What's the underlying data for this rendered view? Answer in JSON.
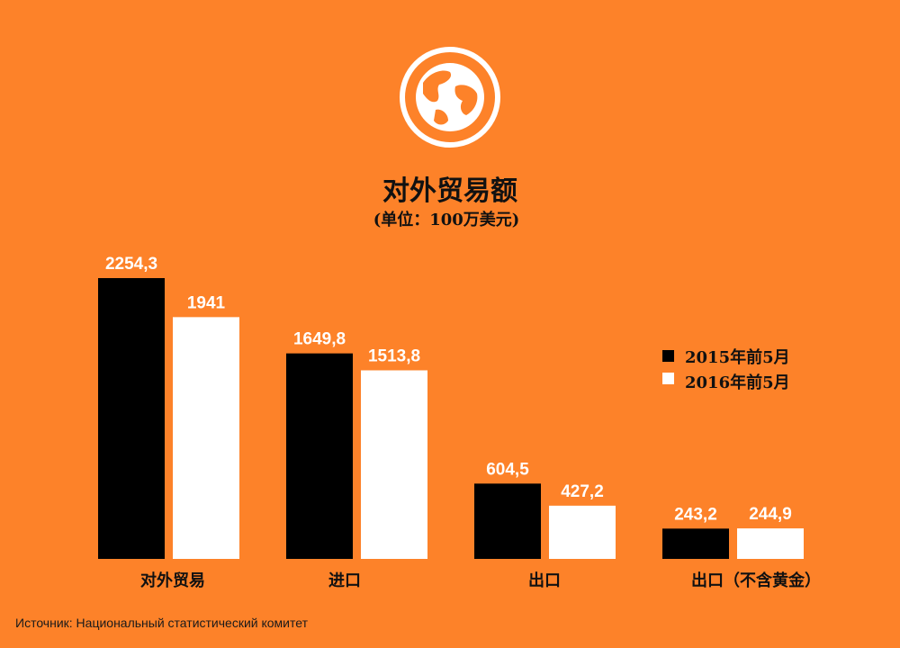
{
  "colors": {
    "background": "#fd8229",
    "series_2015": "#000000",
    "series_2016": "#ffffff",
    "icon_ring": "#ffffff",
    "icon_fill": "#fd8229"
  },
  "icon": "globe-icon",
  "chart_data": {
    "type": "bar",
    "title": "对外贸易额",
    "subtitle": "(单位：100万美元)",
    "categories": [
      "对外贸易",
      "进口",
      "出口",
      "出口（不含黄金）"
    ],
    "series": [
      {
        "name": "2015年前5月",
        "values": [
          2254.3,
          1649.8,
          604.5,
          243.2
        ],
        "labels": [
          "2254,3",
          "1649,8",
          "604,5",
          "243,2"
        ]
      },
      {
        "name": "2016年前5月",
        "values": [
          1941,
          1513.8,
          427.2,
          244.9
        ],
        "labels": [
          "1941",
          "1513,8",
          "427,2",
          "244,9"
        ]
      }
    ],
    "ylim": [
      0,
      2254.3
    ],
    "grid": false,
    "legend_position": "right"
  },
  "source": "Источник: Национальный статистический комитет"
}
